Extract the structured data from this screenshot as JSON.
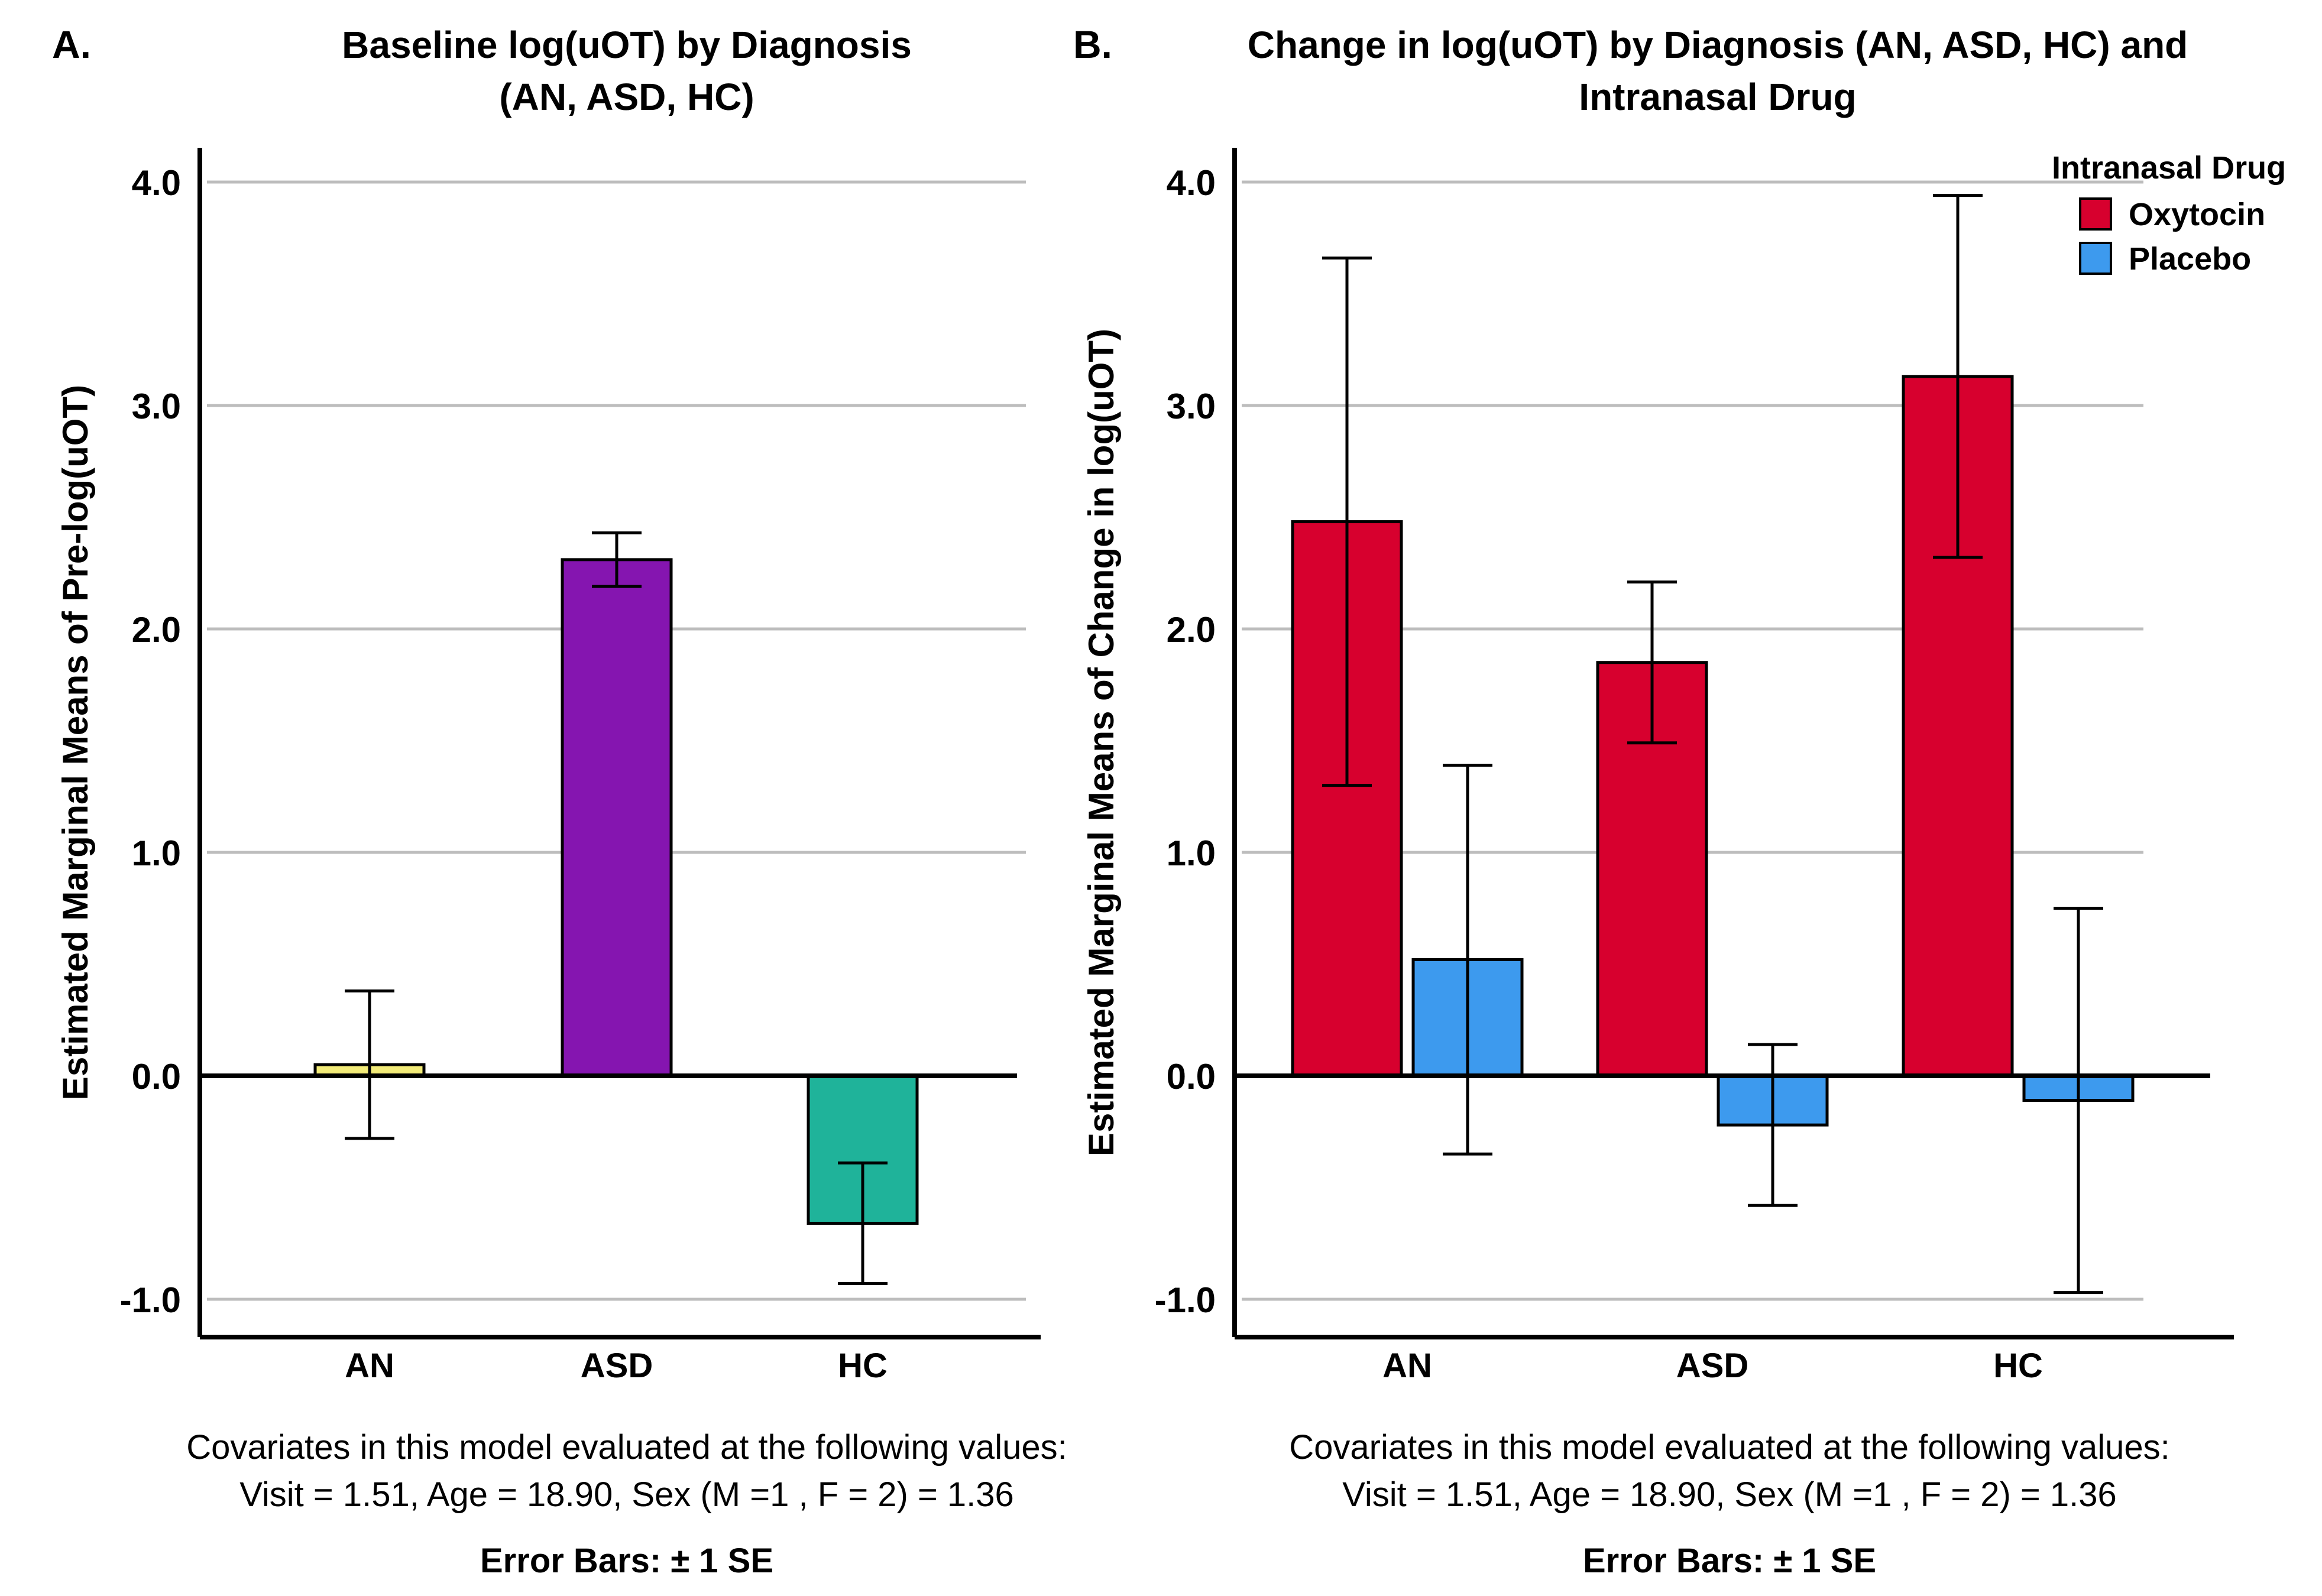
{
  "chart_data": [
    {
      "panel": "A.",
      "type": "bar",
      "title_lines": [
        "Baseline log(uOT) by Diagnosis",
        "(AN, ASD, HC)"
      ],
      "ylabel": "Estimated Marginal Means of Pre-log(uOT)",
      "xlabel": "",
      "categories": [
        "AN",
        "ASD",
        "HC"
      ],
      "series": [
        {
          "name": "Baseline",
          "colors": [
            "#F2EB78",
            "#8515B0",
            "#1FB39A"
          ],
          "values": [
            0.05,
            2.31,
            -0.66
          ],
          "se": [
            0.33,
            0.12,
            0.27
          ]
        }
      ],
      "ylim": [
        -1.18,
        4.16
      ],
      "yticks": [
        -1.0,
        0.0,
        1.0,
        2.0,
        3.0,
        4.0
      ],
      "ytick_labels": [
        "-1.0",
        "0.0",
        "1.0",
        "2.0",
        "3.0",
        "4.0"
      ],
      "grid": true,
      "legend": null,
      "notes": [
        "Covariates in this model evaluated at the following values:",
        "Visit = 1.51, Age = 18.90, Sex (M =1 , F = 2)  = 1.36"
      ],
      "error_note": "Error Bars: ± 1 SE"
    },
    {
      "panel": "B.",
      "type": "bar",
      "title_lines": [
        "Change in log(uOT) by Diagnosis (AN, ASD, HC) and",
        "Intranasal Drug"
      ],
      "ylabel": "Estimated Marginal Means of Change in log(uOT)",
      "xlabel": "",
      "categories": [
        "AN",
        "ASD",
        "HC"
      ],
      "series": [
        {
          "name": "Oxytocin",
          "color": "#D7002E",
          "values": [
            2.48,
            1.85,
            3.13
          ],
          "se": [
            1.18,
            0.36,
            0.81
          ]
        },
        {
          "name": "Placebo",
          "color": "#3D9AEE",
          "values": [
            0.52,
            -0.22,
            -0.11
          ],
          "se": [
            0.87,
            0.36,
            0.86
          ]
        }
      ],
      "ylim": [
        -1.18,
        4.16
      ],
      "yticks": [
        -1.0,
        0.0,
        1.0,
        2.0,
        3.0,
        4.0
      ],
      "ytick_labels": [
        "-1.0",
        "0.0",
        "1.0",
        "2.0",
        "3.0",
        "4.0"
      ],
      "grid": true,
      "legend": {
        "title": "Intranasal Drug",
        "position": "top-right"
      },
      "notes": [
        "Covariates in this model evaluated at the following values:",
        "Visit = 1.51, Age = 18.90, Sex (M =1 , F = 2)  = 1.36"
      ],
      "error_note": "Error Bars: ± 1 SE"
    }
  ]
}
